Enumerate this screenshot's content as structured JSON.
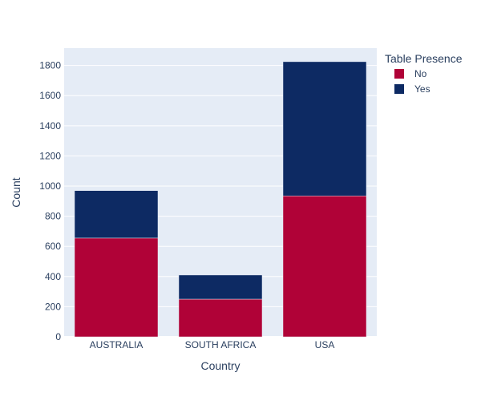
{
  "chart_data": {
    "type": "bar",
    "barmode": "stack",
    "categories": [
      "AUSTRALIA",
      "SOUTH AFRICA",
      "USA"
    ],
    "series": [
      {
        "name": "No",
        "values": [
          655,
          250,
          935
        ],
        "color": "#b00237"
      },
      {
        "name": "Yes",
        "values": [
          315,
          160,
          890
        ],
        "color": "#0d2a63"
      }
    ],
    "title": "",
    "xlabel": "Country",
    "ylabel": "Count",
    "ylim": [
      0,
      1915
    ],
    "yticks": [
      0,
      200,
      400,
      600,
      800,
      1000,
      1200,
      1400,
      1600,
      1800
    ],
    "grid": true,
    "legend": {
      "title": "Table Presence",
      "position": "top-right"
    },
    "colors": {
      "plot_background": "#e5ecf6",
      "gridline": "#ffffff",
      "text": "#2a3f5f"
    }
  }
}
